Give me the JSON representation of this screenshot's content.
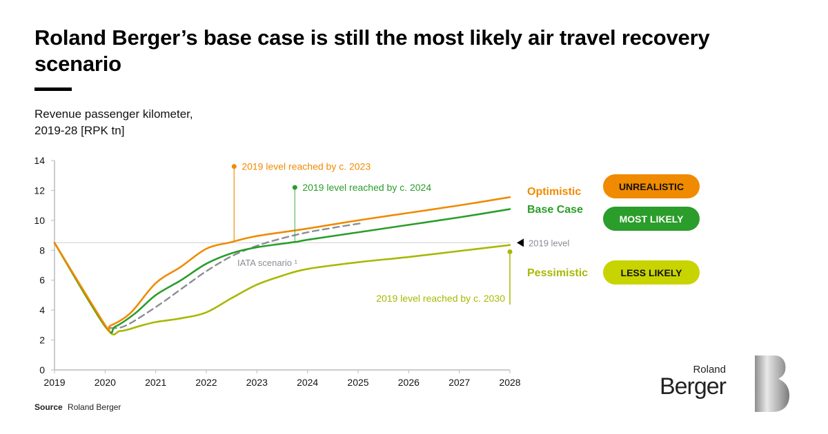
{
  "title": "Roland Berger’s base case is still the most likely air travel recovery scenario",
  "subtitle_line1": "Revenue passenger kilometer,",
  "subtitle_line2": "2019-28 [RPK tn]",
  "source_label": "Source",
  "source_value": "Roland Berger",
  "logo": {
    "small": "Roland",
    "big": "Berger",
    "mark": "B"
  },
  "colors": {
    "optimistic": "#F08A00",
    "base": "#2A9D2A",
    "pessimistic": "#A8B800",
    "iata": "#8A8D94",
    "badge_pessimistic": "#C8D400",
    "ref": "#d0d0d0"
  },
  "scenarios": [
    {
      "key": "optimistic",
      "label": "Optimistic",
      "badge": "UNREALISTIC"
    },
    {
      "key": "base",
      "label": "Base Case",
      "badge": "MOST LIKELY"
    },
    {
      "key": "pessimistic",
      "label": "Pessimistic",
      "badge": "LESS LIKELY"
    }
  ],
  "chart_data": {
    "type": "line",
    "title": "Revenue passenger kilometer, 2019-28 [RPK tn]",
    "xlabel": "",
    "ylabel": "RPK tn",
    "x": [
      2019,
      2020,
      2021,
      2022,
      2023,
      2024,
      2025,
      2026,
      2027,
      2028
    ],
    "xlim": [
      2019,
      2028
    ],
    "ylim": [
      0,
      14
    ],
    "yticks": [
      0,
      2,
      4,
      6,
      8,
      10,
      12,
      14
    ],
    "xticks": [
      "2019",
      "2020",
      "2021",
      "2022",
      "2023",
      "2024",
      "2025",
      "2026",
      "2027",
      "2028"
    ],
    "grid": false,
    "reference_line": {
      "value": 8.5,
      "label": "2019 level"
    },
    "series": [
      {
        "name": "Optimistic",
        "key": "optimistic",
        "points": [
          [
            2019,
            8.5
          ],
          [
            2020,
            3.0
          ],
          [
            2020.1,
            2.95
          ],
          [
            2020.5,
            3.8
          ],
          [
            2021,
            5.8
          ],
          [
            2021.5,
            6.9
          ],
          [
            2022,
            8.1
          ],
          [
            2022.5,
            8.55
          ],
          [
            2023,
            8.95
          ],
          [
            2024,
            9.45
          ],
          [
            2025,
            10.0
          ],
          [
            2026,
            10.5
          ],
          [
            2027,
            11.0
          ],
          [
            2028,
            11.55
          ]
        ]
      },
      {
        "name": "Base Case",
        "key": "base",
        "points": [
          [
            2019,
            8.5
          ],
          [
            2020,
            2.95
          ],
          [
            2020.2,
            2.9
          ],
          [
            2020.6,
            3.8
          ],
          [
            2021,
            5.0
          ],
          [
            2021.5,
            6.0
          ],
          [
            2022,
            7.1
          ],
          [
            2022.5,
            7.8
          ],
          [
            2023,
            8.2
          ],
          [
            2023.75,
            8.55
          ],
          [
            2024,
            8.7
          ],
          [
            2025,
            9.2
          ],
          [
            2026,
            9.7
          ],
          [
            2027,
            10.2
          ],
          [
            2028,
            10.75
          ]
        ]
      },
      {
        "name": "IATA scenario",
        "key": "iata",
        "dashed": true,
        "points": [
          [
            2020.1,
            2.8
          ],
          [
            2020.4,
            2.95
          ],
          [
            2021,
            4.2
          ],
          [
            2021.5,
            5.4
          ],
          [
            2022,
            6.6
          ],
          [
            2022.5,
            7.6
          ],
          [
            2023,
            8.3
          ],
          [
            2023.5,
            8.8
          ],
          [
            2024,
            9.2
          ],
          [
            2024.5,
            9.5
          ],
          [
            2025.05,
            9.8
          ]
        ]
      },
      {
        "name": "Pessimistic",
        "key": "pessimistic",
        "points": [
          [
            2019,
            8.5
          ],
          [
            2020,
            2.9
          ],
          [
            2020.3,
            2.6
          ],
          [
            2020.7,
            2.95
          ],
          [
            2021,
            3.2
          ],
          [
            2021.5,
            3.45
          ],
          [
            2022,
            3.85
          ],
          [
            2022.5,
            4.8
          ],
          [
            2023,
            5.7
          ],
          [
            2023.5,
            6.3
          ],
          [
            2024,
            6.75
          ],
          [
            2025,
            7.2
          ],
          [
            2026,
            7.55
          ],
          [
            2027,
            7.95
          ],
          [
            2028,
            8.35
          ]
        ]
      }
    ],
    "annotations": [
      {
        "text": "2019 level reached by c. 2023",
        "series": "optimistic",
        "x": 2022.55,
        "marker_value": 13.6
      },
      {
        "text": "2019 level reached by c. 2024",
        "series": "base",
        "x": 2023.75,
        "marker_value": 12.2
      },
      {
        "text": "2019 level reached by c. 2030",
        "series": "pessimistic",
        "x": 2028,
        "marker_value": 7.9
      },
      {
        "text": "IATA scenario ¹",
        "series": "iata"
      }
    ]
  }
}
